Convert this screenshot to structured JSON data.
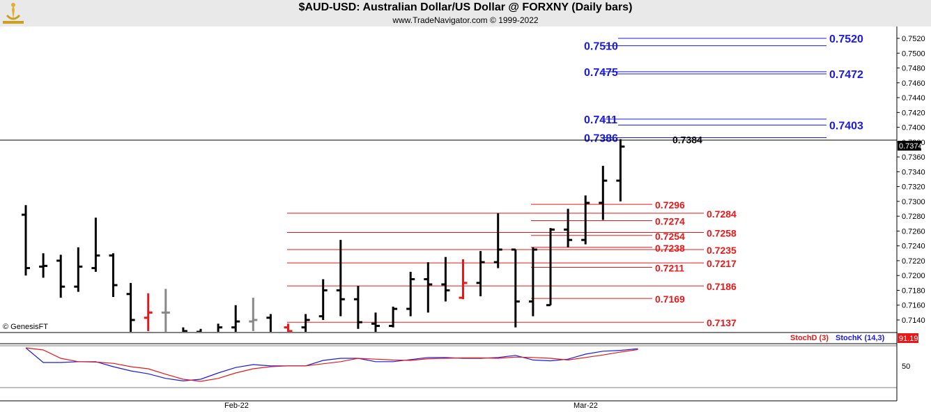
{
  "header": {
    "title": "$AUD-USD:  Australian Dollar/US Dollar @ FORXNY  (Daily bars)",
    "subtitle": "www.TradeNavigator.com © 1999-2022"
  },
  "watermark": "© GenesisFT",
  "colors": {
    "up": "#000000",
    "down_red": "#e81818",
    "gray": "#888888",
    "blue": "#1a1ae6",
    "red": "#e81818"
  },
  "chart_data": [
    {
      "type": "bar",
      "subtype": "ohlc",
      "y_ticks": [
        "0.7520",
        "0.7500",
        "0.7480",
        "0.7460",
        "0.7440",
        "0.7420",
        "0.7400",
        "0.7380",
        "0.7360",
        "0.7340",
        "0.7320",
        "0.7300",
        "0.7280",
        "0.7260",
        "0.7240",
        "0.7220",
        "0.7200",
        "0.7180",
        "0.7160",
        "0.7140"
      ],
      "last_price": "0.7374",
      "ylim": [
        0.7128,
        0.7535
      ],
      "bars": [
        {
          "o": 0.7282,
          "h": 0.7295,
          "l": 0.72,
          "c": 0.721,
          "color": "black"
        },
        {
          "o": 0.7212,
          "h": 0.723,
          "l": 0.7197,
          "c": 0.7213,
          "color": "black"
        },
        {
          "o": 0.722,
          "h": 0.7228,
          "l": 0.717,
          "c": 0.7185,
          "color": "black"
        },
        {
          "o": 0.7185,
          "h": 0.7238,
          "l": 0.7178,
          "c": 0.7212,
          "color": "black"
        },
        {
          "o": 0.721,
          "h": 0.7278,
          "l": 0.7205,
          "c": 0.7227,
          "color": "black"
        },
        {
          "o": 0.7227,
          "h": 0.723,
          "l": 0.7171,
          "c": 0.7187,
          "color": "black"
        },
        {
          "o": 0.7175,
          "h": 0.719,
          "l": 0.712,
          "c": 0.714,
          "color": "black"
        },
        {
          "o": 0.7143,
          "h": 0.7176,
          "l": 0.7125,
          "c": 0.715,
          "color": "red"
        },
        {
          "o": 0.715,
          "h": 0.7182,
          "l": 0.711,
          "c": 0.715,
          "color": "gray"
        },
        {
          "o": 0.712,
          "h": 0.713,
          "l": 0.71,
          "c": 0.7125,
          "color": "black"
        },
        {
          "o": 0.7124,
          "h": 0.7128,
          "l": 0.7095,
          "c": 0.711,
          "color": "black"
        },
        {
          "o": 0.712,
          "h": 0.7135,
          "l": 0.71,
          "c": 0.713,
          "color": "black"
        },
        {
          "o": 0.713,
          "h": 0.716,
          "l": 0.712,
          "c": 0.7138,
          "color": "black"
        },
        {
          "o": 0.7138,
          "h": 0.717,
          "l": 0.7125,
          "c": 0.714,
          "color": "gray"
        },
        {
          "o": 0.7143,
          "h": 0.7148,
          "l": 0.71,
          "c": 0.711,
          "color": "black"
        },
        {
          "o": 0.713,
          "h": 0.7135,
          "l": 0.711,
          "c": 0.7125,
          "color": "red"
        },
        {
          "o": 0.713,
          "h": 0.7148,
          "l": 0.71,
          "c": 0.714,
          "color": "black"
        },
        {
          "o": 0.7145,
          "h": 0.7195,
          "l": 0.714,
          "c": 0.718,
          "color": "black"
        },
        {
          "o": 0.718,
          "h": 0.7248,
          "l": 0.7145,
          "c": 0.7168,
          "color": "black"
        },
        {
          "o": 0.7168,
          "h": 0.7186,
          "l": 0.7128,
          "c": 0.7137,
          "color": "black"
        },
        {
          "o": 0.7135,
          "h": 0.715,
          "l": 0.711,
          "c": 0.7132,
          "color": "black"
        },
        {
          "o": 0.7132,
          "h": 0.7158,
          "l": 0.713,
          "c": 0.7155,
          "color": "black"
        },
        {
          "o": 0.7155,
          "h": 0.7205,
          "l": 0.7145,
          "c": 0.7195,
          "color": "black"
        },
        {
          "o": 0.7195,
          "h": 0.7218,
          "l": 0.715,
          "c": 0.7188,
          "color": "black"
        },
        {
          "o": 0.7188,
          "h": 0.7225,
          "l": 0.7165,
          "c": 0.718,
          "color": "black"
        },
        {
          "o": 0.717,
          "h": 0.7222,
          "l": 0.7168,
          "c": 0.719,
          "color": "red"
        },
        {
          "o": 0.719,
          "h": 0.7233,
          "l": 0.7172,
          "c": 0.7218,
          "color": "black"
        },
        {
          "o": 0.7218,
          "h": 0.7284,
          "l": 0.721,
          "c": 0.7235,
          "color": "black"
        },
        {
          "o": 0.7235,
          "h": 0.7235,
          "l": 0.713,
          "c": 0.7165,
          "color": "black"
        },
        {
          "o": 0.7165,
          "h": 0.7238,
          "l": 0.7145,
          "c": 0.7235,
          "color": "black"
        },
        {
          "o": 0.716,
          "h": 0.7264,
          "l": 0.716,
          "c": 0.7262,
          "color": "black"
        },
        {
          "o": 0.7262,
          "h": 0.729,
          "l": 0.7238,
          "c": 0.7248,
          "color": "black"
        },
        {
          "o": 0.7248,
          "h": 0.7308,
          "l": 0.7242,
          "c": 0.7298,
          "color": "black"
        },
        {
          "o": 0.7298,
          "h": 0.7348,
          "l": 0.7275,
          "c": 0.7328,
          "color": "black"
        },
        {
          "o": 0.7328,
          "h": 0.7384,
          "l": 0.73,
          "c": 0.7374,
          "color": "black"
        }
      ],
      "levels": [
        {
          "price": 0.752,
          "label": "0.7520",
          "side": "right",
          "color": "blue"
        },
        {
          "price": 0.751,
          "label": "0.7510",
          "side": "left",
          "color": "blue"
        },
        {
          "price": 0.7475,
          "label": "0.7475",
          "side": "left",
          "color": "blue"
        },
        {
          "price": 0.7472,
          "label": "0.7472",
          "side": "right",
          "color": "blue"
        },
        {
          "price": 0.7411,
          "label": "0.7411",
          "side": "left",
          "color": "blue"
        },
        {
          "price": 0.7403,
          "label": "0.7403",
          "side": "right",
          "color": "blue"
        },
        {
          "price": 0.7386,
          "label": "0.7386",
          "side": "left",
          "color": "blue"
        },
        {
          "price": 0.7384,
          "label": "0.7384",
          "side": "mid",
          "color": "black"
        },
        {
          "price": 0.7296,
          "label": "0.7296",
          "side": "inner",
          "color": "red"
        },
        {
          "price": 0.7284,
          "label": "0.7284",
          "side": "outer",
          "color": "red"
        },
        {
          "price": 0.7274,
          "label": "0.7274",
          "side": "inner",
          "color": "red"
        },
        {
          "price": 0.7258,
          "label": "0.7258",
          "side": "outer",
          "color": "red"
        },
        {
          "price": 0.7254,
          "label": "0.7254",
          "side": "inner",
          "color": "red"
        },
        {
          "price": 0.7238,
          "label": "0.7238",
          "side": "inner",
          "color": "red"
        },
        {
          "price": 0.7235,
          "label": "0.7235",
          "side": "outer",
          "color": "red"
        },
        {
          "price": 0.7217,
          "label": "0.7217",
          "side": "outer",
          "color": "red"
        },
        {
          "price": 0.7211,
          "label": "0.7211",
          "side": "inner",
          "color": "red"
        },
        {
          "price": 0.7186,
          "label": "0.7186",
          "side": "outer",
          "color": "red"
        },
        {
          "price": 0.7169,
          "label": "0.7169",
          "side": "inner",
          "color": "red"
        },
        {
          "price": 0.7137,
          "label": "0.7137",
          "side": "outer",
          "color": "red"
        }
      ]
    },
    {
      "type": "line",
      "legend": [
        "StochD (3)",
        "StochK (14,3)"
      ],
      "ylim": [
        0,
        100
      ],
      "y_ticks": [
        "50"
      ],
      "x_ticks": [
        "Feb-22",
        "Mar-22"
      ],
      "last_value": "91.19",
      "series": [
        {
          "name": "StochK (14,3)",
          "color": "blue",
          "values": [
            95,
            60,
            60,
            62,
            62,
            50,
            40,
            33,
            22,
            16,
            20,
            35,
            48,
            55,
            52,
            52,
            52,
            65,
            70,
            70,
            62,
            62,
            67,
            72,
            72,
            70,
            70,
            72,
            77,
            66,
            64,
            68,
            80,
            87,
            89,
            93
          ]
        },
        {
          "name": "StochD (3)",
          "color": "red",
          "values": [
            95,
            90,
            70,
            62,
            61,
            58,
            50,
            45,
            32,
            20,
            15,
            22,
            35,
            45,
            50,
            52,
            52,
            57,
            62,
            70,
            68,
            66,
            65,
            69,
            70,
            71,
            71,
            70,
            73,
            72,
            70,
            66,
            72,
            78,
            85,
            91
          ]
        }
      ]
    }
  ]
}
